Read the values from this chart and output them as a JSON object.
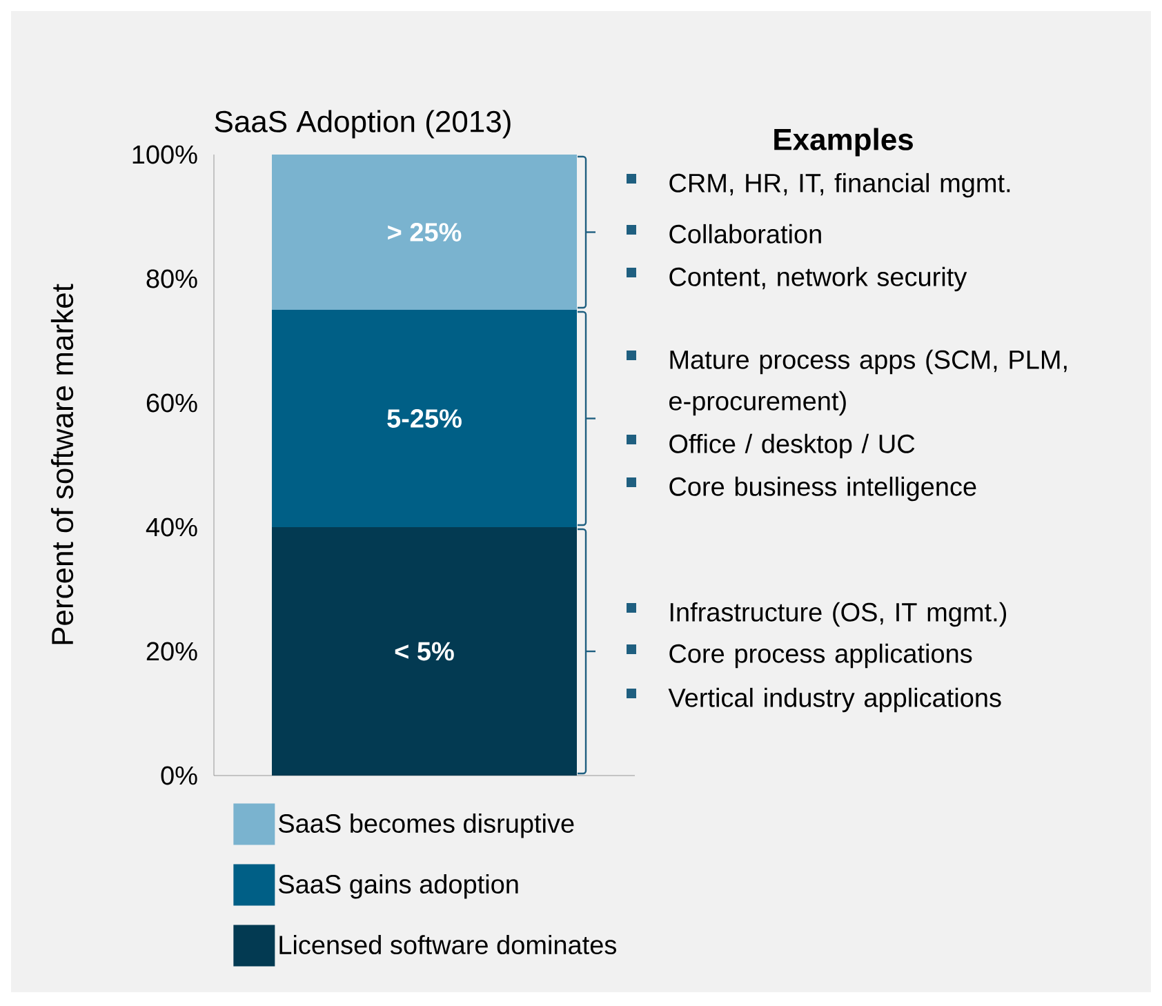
{
  "chart_data": {
    "type": "bar",
    "stacked": true,
    "title": "SaaS Adoption (2013)",
    "ylabel": "Percent of  software market",
    "categories": [
      null
    ],
    "series": [
      {
        "name": "Licensed software dominates",
        "color": "#033a52",
        "values": [
          40
        ]
      },
      {
        "name": "SaaS gains adoption",
        "color": "#005f86",
        "values": [
          35
        ]
      },
      {
        "name": "SaaS becomes disruptive",
        "color": "#7ab3cf",
        "values": [
          25
        ]
      }
    ],
    "ylim": [
      0,
      100
    ],
    "yticks": [
      {
        "value": 0,
        "label": "0%"
      },
      {
        "value": 20,
        "label": "20%"
      },
      {
        "value": 40,
        "label": "40%"
      },
      {
        "value": 60,
        "label": "60%"
      },
      {
        "value": 80,
        "label": "80%"
      },
      {
        "value": 100,
        "label": "100%"
      }
    ],
    "grid": false,
    "legend": "bottom",
    "annotations": [
      "Examples",
      "CRM, HR, IT, financial mgmt.",
      "Collaboration",
      "Content, network security",
      "Mature process apps (SCM, PLM, e-procurement)",
      "Office / desktop / UC",
      "Core business intelligence",
      "Infrastructure (OS, IT mgmt.)",
      "Core process applications",
      "Vertical industry applications",
      "< 5%",
      "5-25%",
      "> 25%"
    ]
  }
}
